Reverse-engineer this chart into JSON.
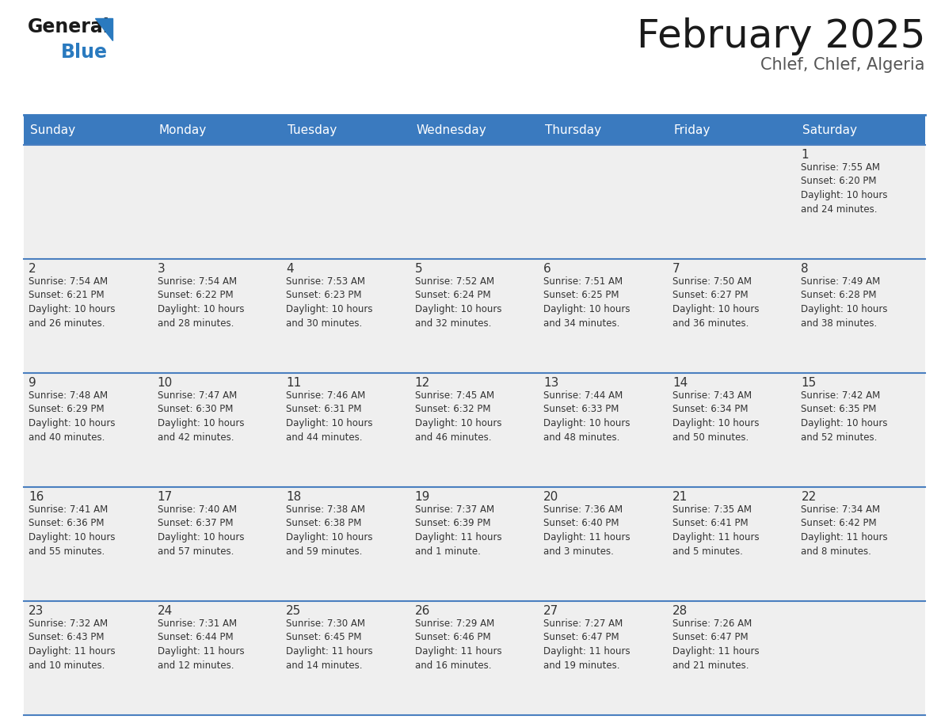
{
  "title": "February 2025",
  "subtitle": "Chlef, Chlef, Algeria",
  "header_bg": "#3a7abf",
  "header_text_color": "#ffffff",
  "cell_bg": "#efefef",
  "day_color": "#333333",
  "info_color": "#333333",
  "border_color": "#4a7fc0",
  "days_of_week": [
    "Sunday",
    "Monday",
    "Tuesday",
    "Wednesday",
    "Thursday",
    "Friday",
    "Saturday"
  ],
  "weeks": [
    [
      {
        "day": "",
        "info": ""
      },
      {
        "day": "",
        "info": ""
      },
      {
        "day": "",
        "info": ""
      },
      {
        "day": "",
        "info": ""
      },
      {
        "day": "",
        "info": ""
      },
      {
        "day": "",
        "info": ""
      },
      {
        "day": "1",
        "info": "Sunrise: 7:55 AM\nSunset: 6:20 PM\nDaylight: 10 hours\nand 24 minutes."
      }
    ],
    [
      {
        "day": "2",
        "info": "Sunrise: 7:54 AM\nSunset: 6:21 PM\nDaylight: 10 hours\nand 26 minutes."
      },
      {
        "day": "3",
        "info": "Sunrise: 7:54 AM\nSunset: 6:22 PM\nDaylight: 10 hours\nand 28 minutes."
      },
      {
        "day": "4",
        "info": "Sunrise: 7:53 AM\nSunset: 6:23 PM\nDaylight: 10 hours\nand 30 minutes."
      },
      {
        "day": "5",
        "info": "Sunrise: 7:52 AM\nSunset: 6:24 PM\nDaylight: 10 hours\nand 32 minutes."
      },
      {
        "day": "6",
        "info": "Sunrise: 7:51 AM\nSunset: 6:25 PM\nDaylight: 10 hours\nand 34 minutes."
      },
      {
        "day": "7",
        "info": "Sunrise: 7:50 AM\nSunset: 6:27 PM\nDaylight: 10 hours\nand 36 minutes."
      },
      {
        "day": "8",
        "info": "Sunrise: 7:49 AM\nSunset: 6:28 PM\nDaylight: 10 hours\nand 38 minutes."
      }
    ],
    [
      {
        "day": "9",
        "info": "Sunrise: 7:48 AM\nSunset: 6:29 PM\nDaylight: 10 hours\nand 40 minutes."
      },
      {
        "day": "10",
        "info": "Sunrise: 7:47 AM\nSunset: 6:30 PM\nDaylight: 10 hours\nand 42 minutes."
      },
      {
        "day": "11",
        "info": "Sunrise: 7:46 AM\nSunset: 6:31 PM\nDaylight: 10 hours\nand 44 minutes."
      },
      {
        "day": "12",
        "info": "Sunrise: 7:45 AM\nSunset: 6:32 PM\nDaylight: 10 hours\nand 46 minutes."
      },
      {
        "day": "13",
        "info": "Sunrise: 7:44 AM\nSunset: 6:33 PM\nDaylight: 10 hours\nand 48 minutes."
      },
      {
        "day": "14",
        "info": "Sunrise: 7:43 AM\nSunset: 6:34 PM\nDaylight: 10 hours\nand 50 minutes."
      },
      {
        "day": "15",
        "info": "Sunrise: 7:42 AM\nSunset: 6:35 PM\nDaylight: 10 hours\nand 52 minutes."
      }
    ],
    [
      {
        "day": "16",
        "info": "Sunrise: 7:41 AM\nSunset: 6:36 PM\nDaylight: 10 hours\nand 55 minutes."
      },
      {
        "day": "17",
        "info": "Sunrise: 7:40 AM\nSunset: 6:37 PM\nDaylight: 10 hours\nand 57 minutes."
      },
      {
        "day": "18",
        "info": "Sunrise: 7:38 AM\nSunset: 6:38 PM\nDaylight: 10 hours\nand 59 minutes."
      },
      {
        "day": "19",
        "info": "Sunrise: 7:37 AM\nSunset: 6:39 PM\nDaylight: 11 hours\nand 1 minute."
      },
      {
        "day": "20",
        "info": "Sunrise: 7:36 AM\nSunset: 6:40 PM\nDaylight: 11 hours\nand 3 minutes."
      },
      {
        "day": "21",
        "info": "Sunrise: 7:35 AM\nSunset: 6:41 PM\nDaylight: 11 hours\nand 5 minutes."
      },
      {
        "day": "22",
        "info": "Sunrise: 7:34 AM\nSunset: 6:42 PM\nDaylight: 11 hours\nand 8 minutes."
      }
    ],
    [
      {
        "day": "23",
        "info": "Sunrise: 7:32 AM\nSunset: 6:43 PM\nDaylight: 11 hours\nand 10 minutes."
      },
      {
        "day": "24",
        "info": "Sunrise: 7:31 AM\nSunset: 6:44 PM\nDaylight: 11 hours\nand 12 minutes."
      },
      {
        "day": "25",
        "info": "Sunrise: 7:30 AM\nSunset: 6:45 PM\nDaylight: 11 hours\nand 14 minutes."
      },
      {
        "day": "26",
        "info": "Sunrise: 7:29 AM\nSunset: 6:46 PM\nDaylight: 11 hours\nand 16 minutes."
      },
      {
        "day": "27",
        "info": "Sunrise: 7:27 AM\nSunset: 6:47 PM\nDaylight: 11 hours\nand 19 minutes."
      },
      {
        "day": "28",
        "info": "Sunrise: 7:26 AM\nSunset: 6:47 PM\nDaylight: 11 hours\nand 21 minutes."
      },
      {
        "day": "",
        "info": ""
      }
    ]
  ],
  "logo_general_color": "#1a1a1a",
  "logo_blue_color": "#2a7abf",
  "logo_triangle_color": "#2a7abf",
  "title_fontsize": 36,
  "subtitle_fontsize": 15,
  "header_fontsize": 11,
  "day_fontsize": 11,
  "info_fontsize": 8.5
}
